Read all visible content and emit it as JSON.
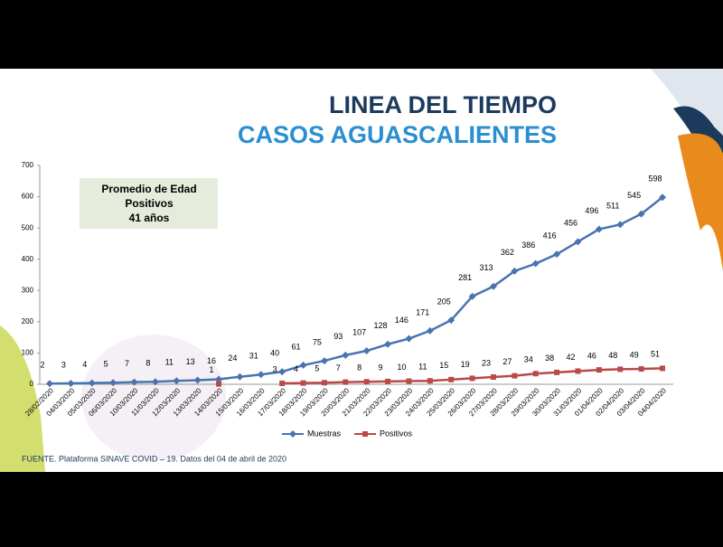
{
  "chart_data": {
    "type": "line",
    "title": [
      "LINEA DEL TIEMPO",
      "CASOS AGUASCALIENTES"
    ],
    "categories": [
      "28/02/2020",
      "04/03/2020",
      "05/03/2020",
      "06/03/2020",
      "10/03/2020",
      "11/03/2020",
      "12/03/2020",
      "13/03/2020",
      "14/03/2020",
      "15/03/2020",
      "16/03/2020",
      "17/03/2020",
      "18/03/2020",
      "19/03/2020",
      "20/03/2020",
      "21/03/2020",
      "22/03/2020",
      "23/03/2020",
      "24/03/2020",
      "25/03/2020",
      "26/03/2020",
      "27/03/2020",
      "28/03/2020",
      "29/03/2020",
      "30/03/2020",
      "31/03/2020",
      "01/04/2020",
      "02/04/2020",
      "03/04/2020",
      "04/04/2020"
    ],
    "series": [
      {
        "name": "Muestras",
        "color": "#4a73b0",
        "marker": "diamond",
        "values": [
          2,
          3,
          4,
          5,
          7,
          8,
          11,
          13,
          16,
          24,
          31,
          40,
          61,
          75,
          93,
          107,
          128,
          146,
          171,
          205,
          281,
          313,
          362,
          386,
          416,
          456,
          496,
          511,
          545,
          598
        ]
      },
      {
        "name": "Positivos",
        "color": "#b94a48",
        "marker": "square",
        "values": [
          null,
          null,
          null,
          null,
          null,
          null,
          null,
          null,
          1,
          null,
          null,
          3,
          4,
          5,
          7,
          8,
          9,
          10,
          11,
          15,
          19,
          23,
          27,
          34,
          38,
          42,
          46,
          48,
          49,
          51
        ]
      }
    ],
    "ylim": [
      0,
      700
    ],
    "yticks": [
      0,
      100,
      200,
      300,
      400,
      500,
      600,
      700
    ],
    "annotation": [
      "Promedio de Edad",
      "Positivos",
      "41 años"
    ],
    "source": "FUENTE. Plataforma SINAVE COVID – 19. Datos del 04 de abril de 2020"
  }
}
